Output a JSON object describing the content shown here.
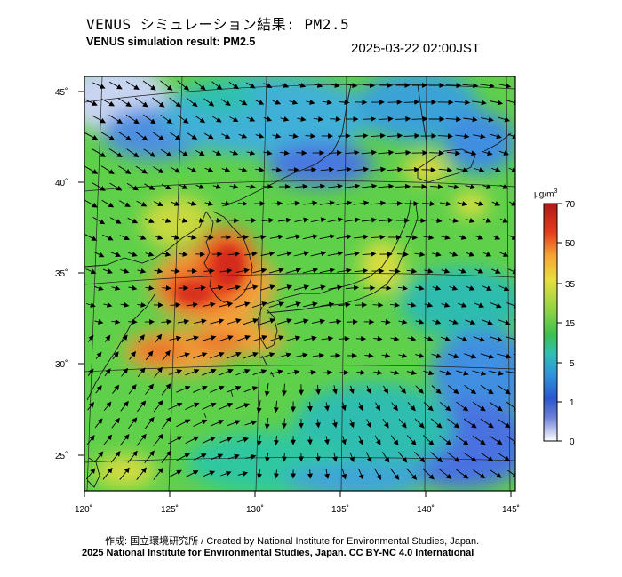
{
  "header": {
    "title_jp": "VENUS シミュレーション結果: PM2.5",
    "title_en": "VENUS simulation result: PM2.5",
    "timestamp": "2025-03-22 02:00JST"
  },
  "map": {
    "lon_labels": [
      "120˚",
      "125˚",
      "130˚",
      "135˚",
      "140˚",
      "145˚"
    ],
    "lat_labels": [
      "45˚",
      "40˚",
      "35˚",
      "30˚",
      "25˚"
    ]
  },
  "colorbar": {
    "unit_base": "μg/m",
    "unit_sup": "3",
    "ticks": [
      "70",
      "50",
      "35",
      "15",
      "5",
      "1",
      "0"
    ],
    "colors": [
      "#d7261e",
      "#f26a20",
      "#f8b13a",
      "#ede03c",
      "#8ed246",
      "#3fc250",
      "#2fbfa8",
      "#2e8fd8",
      "#2e52d0",
      "#7a8ad8",
      "#ffffff"
    ]
  },
  "footer": {
    "credit": "作成: 国立環境研究所 / Created by National Institute for Environmental Studies, Japan.",
    "license": "2025 National Institute for Environmental Studies, Japan. CC BY-NC 4.0 International"
  }
}
